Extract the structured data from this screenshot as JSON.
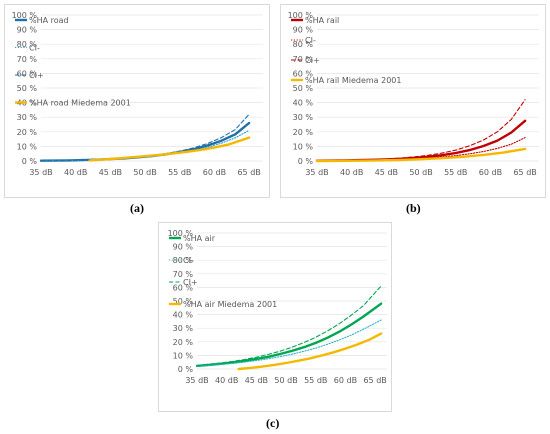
{
  "chart_data": [
    {
      "type": "line",
      "caption": "(a)",
      "yticks": [
        "0 %",
        "10 %",
        "20 %",
        "30 %",
        "40 %",
        "50 %",
        "60 %",
        "70 %",
        "80 %",
        "90 %",
        "100 %"
      ],
      "xticks": [
        "35 dB",
        "40 dB",
        "45 dB",
        "50 dB",
        "55 dB",
        "60 dB",
        "65 dB"
      ],
      "xlim": [
        35,
        67
      ],
      "ylim": [
        0,
        100
      ],
      "x": [
        35,
        37,
        39,
        41,
        43,
        45,
        47,
        49,
        51,
        53,
        55,
        57,
        59,
        61,
        63,
        65
      ],
      "legend": [
        "%HA road",
        "CI-",
        "CI+",
        "%HA road Miedema 2001"
      ],
      "series": [
        {
          "name": "%HA road",
          "style": "solid-thick",
          "color": "#1f6fa8",
          "x": [
            35,
            37,
            39,
            41,
            43,
            45,
            47,
            49,
            51,
            53,
            55,
            57,
            59,
            61,
            63,
            65
          ],
          "values": [
            0.2,
            0.3,
            0.4,
            0.6,
            0.9,
            1.3,
            1.8,
            2.5,
            3.4,
            4.6,
            6.1,
            8.0,
            10.6,
            13.9,
            18.3,
            26.0
          ]
        },
        {
          "name": "CI-",
          "style": "dotted",
          "color": "#2e9ec9",
          "x": [
            35,
            37,
            39,
            41,
            43,
            45,
            47,
            49,
            51,
            53,
            55,
            57,
            59,
            61,
            63,
            65
          ],
          "values": [
            0.2,
            0.3,
            0.4,
            0.6,
            0.8,
            1.2,
            1.7,
            2.3,
            3.1,
            4.2,
            5.5,
            7.2,
            9.4,
            12.2,
            15.9,
            21.0
          ]
        },
        {
          "name": "CI+",
          "style": "dashed",
          "color": "#1f6fa8",
          "x": [
            35,
            37,
            39,
            41,
            43,
            45,
            47,
            49,
            51,
            53,
            55,
            57,
            59,
            61,
            63,
            65
          ],
          "values": [
            0.2,
            0.3,
            0.4,
            0.7,
            1.0,
            1.4,
            2.0,
            2.8,
            3.8,
            5.1,
            6.8,
            9.0,
            12.0,
            16.0,
            21.5,
            32.0
          ]
        },
        {
          "name": "%HA road Miedema 2001",
          "style": "solid-thick",
          "color": "#f5b800",
          "x": [
            42,
            44,
            46,
            48,
            50,
            52,
            54,
            56,
            58,
            60,
            62,
            65
          ],
          "values": [
            0.4,
            1.0,
            1.7,
            2.5,
            3.3,
            4.2,
            5.2,
            6.3,
            7.6,
            9.2,
            11.2,
            16.0
          ]
        }
      ]
    },
    {
      "type": "line",
      "caption": "(b)",
      "yticks": [
        "0 %",
        "10 %",
        "20 %",
        "30 %",
        "40 %",
        "50 %",
        "60 %",
        "70 %",
        "80 %",
        "90 %",
        "100 %"
      ],
      "xticks": [
        "35 dB",
        "40 dB",
        "45 dB",
        "50 dB",
        "55 dB",
        "60 dB",
        "65 dB"
      ],
      "xlim": [
        35,
        67
      ],
      "ylim": [
        0,
        100
      ],
      "legend": [
        "%HA rail",
        "CI-",
        "CI+",
        "%HA rail Miedema 2001"
      ],
      "series": [
        {
          "name": "%HA rail",
          "style": "solid-thick",
          "color": "#c00000",
          "x": [
            35,
            37,
            39,
            41,
            43,
            45,
            47,
            49,
            51,
            53,
            55,
            57,
            59,
            61,
            63,
            65
          ],
          "values": [
            0.2,
            0.3,
            0.4,
            0.6,
            0.8,
            1.1,
            1.5,
            2.1,
            2.9,
            4.0,
            5.5,
            7.5,
            10.3,
            14.0,
            19.5,
            27.5
          ]
        },
        {
          "name": "CI-",
          "style": "dotted",
          "color": "#c00000",
          "x": [
            35,
            37,
            39,
            41,
            43,
            45,
            47,
            49,
            51,
            53,
            55,
            57,
            59,
            61,
            63,
            65
          ],
          "values": [
            0.2,
            0.3,
            0.4,
            0.5,
            0.7,
            0.9,
            1.2,
            1.6,
            2.1,
            2.8,
            3.7,
            4.9,
            6.5,
            8.6,
            11.5,
            16.0
          ]
        },
        {
          "name": "CI+",
          "style": "dashed",
          "color": "#c00000",
          "x": [
            35,
            37,
            39,
            41,
            43,
            45,
            47,
            49,
            51,
            53,
            55,
            57,
            59,
            61,
            63,
            65
          ],
          "values": [
            0.2,
            0.3,
            0.5,
            0.7,
            1.0,
            1.4,
            2.0,
            2.8,
            3.9,
            5.4,
            7.5,
            10.4,
            14.4,
            20.0,
            28.5,
            42.0
          ]
        },
        {
          "name": "%HA rail Miedema 2001",
          "style": "solid-thick",
          "color": "#f5b800",
          "x": [
            35,
            38,
            41,
            44,
            47,
            50,
            53,
            56,
            59,
            62,
            65
          ],
          "values": [
            0.0,
            0.1,
            0.2,
            0.4,
            0.7,
            1.2,
            1.9,
            2.9,
            4.2,
            5.9,
            8.3
          ]
        }
      ]
    },
    {
      "type": "line",
      "caption": "(c)",
      "yticks": [
        "0 %",
        "10 %",
        "20 %",
        "30 %",
        "40 %",
        "50 %",
        "60 %",
        "70 %",
        "80 %",
        "90 %",
        "100 %"
      ],
      "xticks": [
        "35 dB",
        "40 dB",
        "45 dB",
        "50 dB",
        "55 dB",
        "60 dB",
        "65 dB"
      ],
      "xlim": [
        35,
        67
      ],
      "ylim": [
        0,
        100
      ],
      "legend": [
        "%HA air",
        "CI-",
        "CI+",
        "%HA air Miedema 2001"
      ],
      "series": [
        {
          "name": "%HA air",
          "style": "solid-thick",
          "color": "#00a651",
          "x": [
            35,
            37,
            39,
            41,
            43,
            45,
            47,
            49,
            51,
            53,
            55,
            57,
            59,
            61,
            63,
            66
          ],
          "values": [
            2.3,
            3.0,
            3.8,
            4.8,
            6.0,
            7.4,
            9.0,
            11.0,
            13.3,
            16.0,
            19.2,
            23.0,
            27.5,
            32.7,
            38.5,
            48.0
          ]
        },
        {
          "name": "CI-",
          "style": "dotted",
          "color": "#2bb3c0",
          "x": [
            35,
            37,
            39,
            41,
            43,
            45,
            47,
            49,
            51,
            53,
            55,
            57,
            59,
            61,
            63,
            66
          ],
          "values": [
            2.0,
            2.6,
            3.3,
            4.1,
            5.1,
            6.2,
            7.5,
            9.1,
            10.9,
            13.0,
            15.4,
            18.2,
            21.4,
            25.0,
            29.2,
            36.0
          ]
        },
        {
          "name": "CI+",
          "style": "dashed",
          "color": "#00a651",
          "x": [
            35,
            37,
            39,
            41,
            43,
            45,
            47,
            49,
            51,
            53,
            55,
            57,
            59,
            61,
            63,
            66
          ],
          "values": [
            2.7,
            3.5,
            4.4,
            5.6,
            7.0,
            8.7,
            10.7,
            13.1,
            16.0,
            19.4,
            23.4,
            28.0,
            33.4,
            39.6,
            46.5,
            61.0
          ]
        },
        {
          "name": "%HA air Miedema 2001",
          "style": "solid-thick",
          "color": "#f5b800",
          "x": [
            42,
            44,
            46,
            48,
            50,
            52,
            54,
            56,
            58,
            60,
            62,
            64,
            66
          ],
          "values": [
            0.0,
            0.8,
            1.8,
            3.0,
            4.4,
            6.0,
            7.8,
            9.9,
            12.3,
            15.0,
            18.0,
            21.5,
            26.0
          ]
        }
      ]
    }
  ]
}
